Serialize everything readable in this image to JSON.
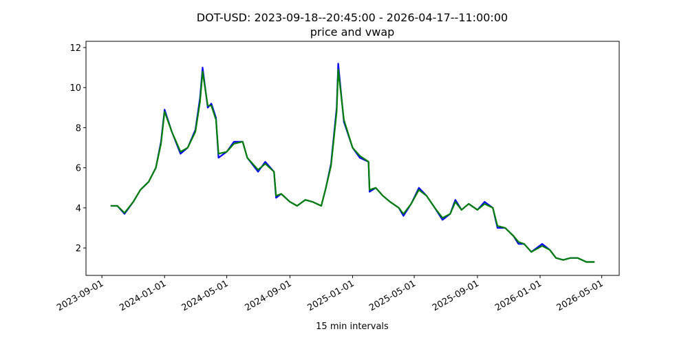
{
  "chart_data": {
    "type": "line",
    "title": "DOT-USD: 2023-09-18--20:45:00 - 2026-04-17--11:00:00",
    "subtitle": "price and vwap",
    "x_label": "15 min intervals",
    "x": [
      "2023-09-18",
      "2023-10-01",
      "2023-10-15",
      "2023-11-01",
      "2023-11-15",
      "2023-12-01",
      "2023-12-15",
      "2023-12-25",
      "2024-01-01",
      "2024-01-15",
      "2024-02-01",
      "2024-02-15",
      "2024-03-01",
      "2024-03-10",
      "2024-03-15",
      "2024-03-25",
      "2024-04-01",
      "2024-04-10",
      "2024-04-15",
      "2024-05-01",
      "2024-05-15",
      "2024-06-01",
      "2024-06-10",
      "2024-07-01",
      "2024-07-15",
      "2024-08-01",
      "2024-08-05",
      "2024-08-15",
      "2024-09-01",
      "2024-09-15",
      "2024-10-01",
      "2024-10-15",
      "2024-11-01",
      "2024-11-10",
      "2024-11-20",
      "2024-12-01",
      "2024-12-04",
      "2024-12-15",
      "2025-01-01",
      "2025-01-15",
      "2025-02-01",
      "2025-02-03",
      "2025-02-15",
      "2025-03-01",
      "2025-03-15",
      "2025-04-01",
      "2025-04-10",
      "2025-04-25",
      "2025-05-10",
      "2025-05-25",
      "2025-06-10",
      "2025-06-25",
      "2025-07-10",
      "2025-07-20",
      "2025-08-01",
      "2025-08-15",
      "2025-09-01",
      "2025-09-15",
      "2025-10-01",
      "2025-10-10",
      "2025-10-25",
      "2025-11-10",
      "2025-11-20",
      "2025-12-01",
      "2025-12-15",
      "2026-01-05",
      "2026-01-20",
      "2026-02-01",
      "2026-02-15",
      "2026-03-01",
      "2026-03-15",
      "2026-04-01",
      "2026-04-17"
    ],
    "series": [
      {
        "name": "price",
        "color": "#0000ff",
        "values": [
          4.1,
          4.1,
          3.7,
          4.3,
          4.9,
          5.3,
          6.0,
          7.3,
          8.9,
          7.8,
          6.7,
          7.0,
          7.9,
          9.5,
          11.0,
          9.0,
          9.2,
          8.5,
          6.5,
          6.8,
          7.3,
          7.3,
          6.5,
          5.8,
          6.3,
          5.8,
          4.5,
          4.7,
          4.3,
          4.1,
          4.4,
          4.3,
          4.1,
          5.0,
          6.2,
          9.0,
          11.2,
          8.3,
          7.0,
          6.5,
          6.3,
          4.8,
          5.0,
          4.6,
          4.3,
          4.0,
          3.6,
          4.2,
          5.0,
          4.6,
          4.0,
          3.4,
          3.7,
          4.4,
          3.9,
          4.2,
          3.9,
          4.3,
          4.0,
          3.0,
          3.0,
          2.6,
          2.2,
          2.2,
          1.8,
          2.2,
          1.9,
          1.5,
          1.4,
          1.5,
          1.5,
          1.3,
          1.3
        ]
      },
      {
        "name": "vwap",
        "color": "#008000",
        "values": [
          4.1,
          4.1,
          3.75,
          4.3,
          4.9,
          5.3,
          6.0,
          7.2,
          8.8,
          7.8,
          6.8,
          7.0,
          7.8,
          9.3,
          10.8,
          9.1,
          9.1,
          8.4,
          6.7,
          6.8,
          7.2,
          7.3,
          6.5,
          5.9,
          6.2,
          5.8,
          4.6,
          4.7,
          4.3,
          4.1,
          4.4,
          4.3,
          4.1,
          5.0,
          6.1,
          8.8,
          10.9,
          8.4,
          7.0,
          6.6,
          6.3,
          4.9,
          5.0,
          4.6,
          4.3,
          4.0,
          3.7,
          4.2,
          4.9,
          4.6,
          4.0,
          3.5,
          3.7,
          4.3,
          3.9,
          4.2,
          3.9,
          4.2,
          4.0,
          3.1,
          3.0,
          2.6,
          2.3,
          2.2,
          1.8,
          2.1,
          1.9,
          1.5,
          1.4,
          1.5,
          1.5,
          1.3,
          1.3
        ]
      }
    ],
    "xlim": [
      "2023-08-01",
      "2026-06-04"
    ],
    "xticks": [
      "2023-09-01",
      "2024-01-01",
      "2024-05-01",
      "2024-09-01",
      "2025-01-01",
      "2025-05-01",
      "2025-09-01",
      "2026-01-01",
      "2026-05-01"
    ],
    "ylim": [
      0.63,
      12.31
    ],
    "yticks": [
      2,
      4,
      6,
      8,
      10,
      12
    ]
  }
}
